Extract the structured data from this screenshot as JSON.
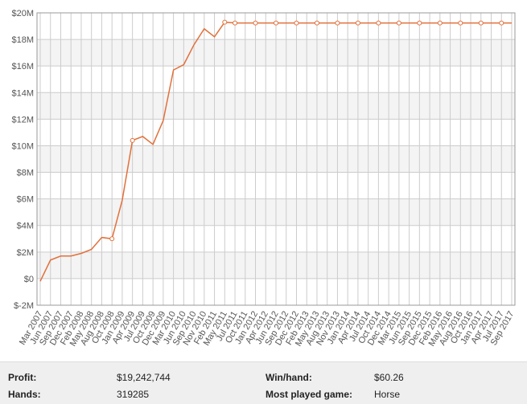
{
  "chart_data": {
    "type": "line",
    "categories": [
      "Mar 2007",
      "Jun 2007",
      "Sep 2007",
      "Dec 2007",
      "Feb 2008",
      "May 2008",
      "Aug 2008",
      "Oct 2008",
      "Jan 2009",
      "Apr 2009",
      "Jul 2009",
      "Oct 2009",
      "Dec 2009",
      "Mar 2010",
      "Jun 2010",
      "Sep 2010",
      "Nov 2010",
      "Feb 2011",
      "May 2011",
      "Jul 2011",
      "Oct 2011",
      "Jan 2012",
      "Apr 2012",
      "Jun 2012",
      "Sep 2012",
      "Dec 2012",
      "Feb 2013",
      "May 2013",
      "Aug 2013",
      "Nov 2013",
      "Jan 2014",
      "Apr 2014",
      "Jul 2014",
      "Oct 2014",
      "Dec 2014",
      "Mar 2015",
      "Jun 2015",
      "Sep 2015",
      "Dec 2015",
      "Feb 2016",
      "May 2016",
      "Aug 2016",
      "Oct 2016",
      "Jan 2017",
      "Apr 2017",
      "Jul 2017",
      "Sep 2017"
    ],
    "values": [
      -0.2,
      1.4,
      1.7,
      1.7,
      1.9,
      2.2,
      3.1,
      3.0,
      5.9,
      10.4,
      10.7,
      10.1,
      11.9,
      15.7,
      16.1,
      17.6,
      18.8,
      18.2,
      19.3,
      19.24,
      19.24,
      19.24,
      19.24,
      19.24,
      19.24,
      19.24,
      19.24,
      19.24,
      19.24,
      19.24,
      19.24,
      19.24,
      19.24,
      19.24,
      19.24,
      19.24,
      19.24,
      19.24,
      19.24,
      19.24,
      19.24,
      19.24,
      19.24,
      19.24,
      19.24,
      19.24,
      19.24
    ],
    "color": "#e2703a",
    "ylim": [
      -2,
      20
    ],
    "yticks": [
      {
        "value": -2,
        "label": "$-2M"
      },
      {
        "value": 0,
        "label": "$0"
      },
      {
        "value": 2,
        "label": "$2M"
      },
      {
        "value": 4,
        "label": "$4M"
      },
      {
        "value": 6,
        "label": "$6M"
      },
      {
        "value": 8,
        "label": "$8M"
      },
      {
        "value": 10,
        "label": "$10M"
      },
      {
        "value": 12,
        "label": "$12M"
      },
      {
        "value": 14,
        "label": "$14M"
      },
      {
        "value": 16,
        "label": "$16M"
      },
      {
        "value": 18,
        "label": "$18M"
      },
      {
        "value": 20,
        "label": "$20M"
      }
    ],
    "grid": true
  },
  "stats": {
    "rows": [
      [
        "Profit:",
        "$19,242,744",
        "Win/hand:",
        "$60.26"
      ],
      [
        "Hands:",
        "319285",
        "Most played game:",
        "Horse"
      ]
    ]
  }
}
